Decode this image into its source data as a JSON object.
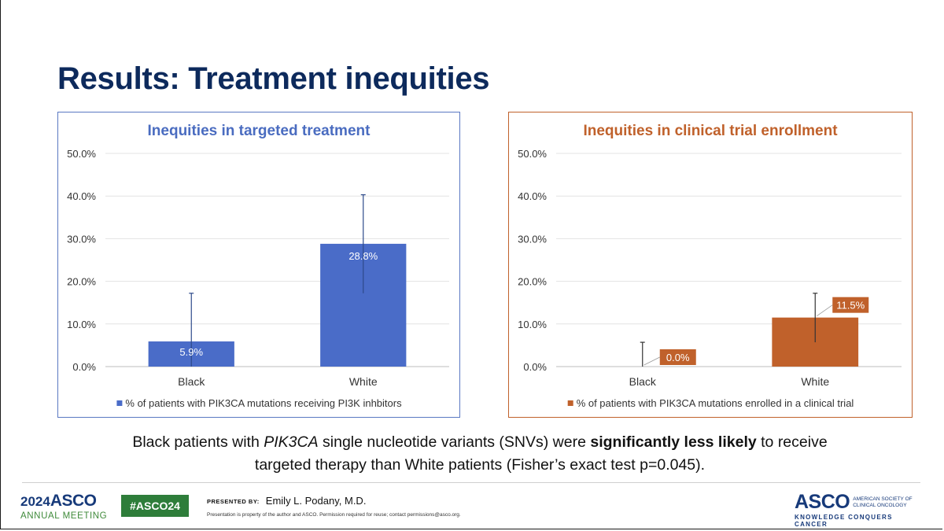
{
  "slide": {
    "title": "Results: Treatment inequities",
    "summary": {
      "part1": "Black patients with ",
      "gene": "PIK3CA",
      "part2": " single nucleotide variants (SNVs) were ",
      "bold": "significantly less likely",
      "part3": " to receive targeted therapy than White patients (Fisher’s exact test p=0.045)."
    }
  },
  "chart_data": [
    {
      "type": "bar",
      "title": "Inequities in targeted treatment",
      "categories": [
        "Black",
        "White"
      ],
      "series": [
        {
          "name": "% of patients with PIK3CA mutations receiving PI3K inhbitors",
          "values": [
            5.9,
            28.8
          ],
          "labels": [
            "5.9%",
            "28.8%"
          ],
          "error_low": [
            0.0,
            17.2
          ],
          "error_high": [
            17.2,
            40.3
          ],
          "color": "#4a6cc8"
        }
      ],
      "yticks": [
        "0.0%",
        "10.0%",
        "20.0%",
        "30.0%",
        "40.0%",
        "50.0%"
      ],
      "ylim": [
        0,
        50
      ],
      "grid": true,
      "legend": "bottom",
      "title_color": "#4a6cc0",
      "border_color": "#5a78c2"
    },
    {
      "type": "bar",
      "title": "Inequities in clinical trial enrollment",
      "categories": [
        "Black",
        "White"
      ],
      "series": [
        {
          "name": "% of patients with PIK3CA mutations enrolled in a clinical trial",
          "values": [
            0.0,
            11.5
          ],
          "labels": [
            "0.0%",
            "11.5%"
          ],
          "error_low": [
            0.0,
            5.7
          ],
          "error_high": [
            5.7,
            17.2
          ],
          "color": "#c0612b"
        }
      ],
      "yticks": [
        "0.0%",
        "10.0%",
        "20.0%",
        "30.0%",
        "40.0%",
        "50.0%"
      ],
      "ylim": [
        0,
        50
      ],
      "grid": true,
      "legend": "bottom",
      "title_color": "#c0612b",
      "border_color": "#c0612b"
    }
  ],
  "footer": {
    "meeting_year": "2024",
    "meeting_org": "ASCO",
    "meeting_name": "ANNUAL MEETING",
    "hashtag": "#ASCO24",
    "presented_label": "PRESENTED BY:",
    "presenter": "Emily L. Podany, M.D.",
    "disclaimer": "Presentation is property of the author and ASCO. Permission required for reuse; contact permissions@asco.org.",
    "asco_word": "ASCO",
    "asco_society": "AMERICAN SOCIETY OF CLINICAL ONCOLOGY",
    "asco_tagline": "KNOWLEDGE CONQUERS CANCER"
  }
}
